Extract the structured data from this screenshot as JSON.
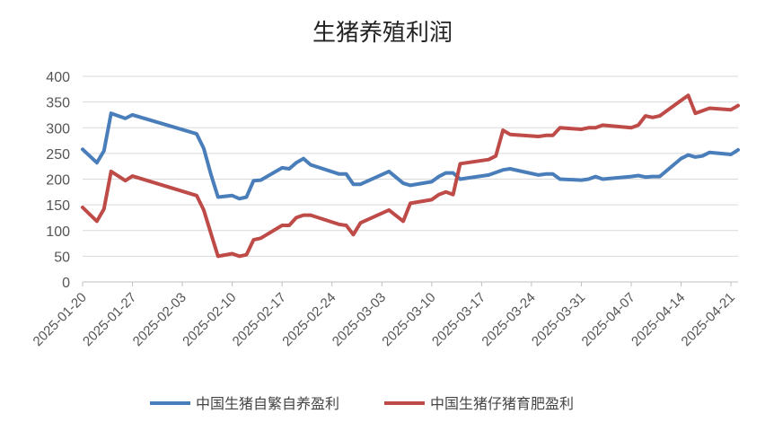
{
  "chart_data": {
    "type": "line",
    "title": "生猪养殖利润",
    "xlabel": "",
    "ylabel": "",
    "ylim": [
      0,
      400
    ],
    "yticks": [
      "0",
      "50",
      "100",
      "150",
      "200",
      "250",
      "300",
      "350",
      "400"
    ],
    "x_tick_labels": [
      "2025-01-20",
      "2025-01-27",
      "2025-02-03",
      "2025-02-10",
      "2025-02-17",
      "2025-02-24",
      "2025-03-03",
      "2025-03-10",
      "2025-03-17",
      "2025-03-24",
      "2025-03-31",
      "2025-04-07",
      "2025-04-14",
      "2025-04-21"
    ],
    "x_range": [
      "2025-01-20",
      "2025-04-22"
    ],
    "grid": "horizontal",
    "legend": "bottom",
    "series": [
      {
        "name": "中国生猪自繁自养盈利",
        "color": "#4a7ebb",
        "x": [
          "2025-01-20",
          "2025-01-22",
          "2025-01-23",
          "2025-01-24",
          "2025-01-26",
          "2025-01-27",
          "2025-02-05",
          "2025-02-06",
          "2025-02-07",
          "2025-02-08",
          "2025-02-10",
          "2025-02-11",
          "2025-02-12",
          "2025-02-13",
          "2025-02-14",
          "2025-02-17",
          "2025-02-18",
          "2025-02-19",
          "2025-02-20",
          "2025-02-21",
          "2025-02-25",
          "2025-02-26",
          "2025-02-27",
          "2025-02-28",
          "2025-03-04",
          "2025-03-06",
          "2025-03-07",
          "2025-03-10",
          "2025-03-11",
          "2025-03-12",
          "2025-03-13",
          "2025-03-14",
          "2025-03-18",
          "2025-03-20",
          "2025-03-21",
          "2025-03-25",
          "2025-03-26",
          "2025-03-27",
          "2025-03-28",
          "2025-03-31",
          "2025-04-01",
          "2025-04-02",
          "2025-04-03",
          "2025-04-07",
          "2025-04-08",
          "2025-04-09",
          "2025-04-10",
          "2025-04-11",
          "2025-04-14",
          "2025-04-15",
          "2025-04-16",
          "2025-04-17",
          "2025-04-18",
          "2025-04-21",
          "2025-04-22"
        ],
        "values": [
          258,
          232,
          255,
          328,
          318,
          325,
          288,
          260,
          210,
          165,
          168,
          162,
          165,
          197,
          198,
          222,
          220,
          232,
          240,
          228,
          210,
          210,
          190,
          190,
          215,
          192,
          188,
          195,
          205,
          212,
          212,
          200,
          208,
          218,
          220,
          208,
          210,
          210,
          200,
          198,
          200,
          205,
          200,
          205,
          207,
          204,
          205,
          205,
          240,
          247,
          243,
          245,
          252,
          248,
          257
        ]
      },
      {
        "name": "中国生猪仔猪育肥盈利",
        "color": "#be4b48",
        "x": [
          "2025-01-20",
          "2025-01-22",
          "2025-01-23",
          "2025-01-24",
          "2025-01-26",
          "2025-01-27",
          "2025-02-05",
          "2025-02-06",
          "2025-02-07",
          "2025-02-08",
          "2025-02-10",
          "2025-02-11",
          "2025-02-12",
          "2025-02-13",
          "2025-02-14",
          "2025-02-17",
          "2025-02-18",
          "2025-02-19",
          "2025-02-20",
          "2025-02-21",
          "2025-02-25",
          "2025-02-26",
          "2025-02-27",
          "2025-02-28",
          "2025-03-04",
          "2025-03-06",
          "2025-03-07",
          "2025-03-10",
          "2025-03-11",
          "2025-03-12",
          "2025-03-13",
          "2025-03-14",
          "2025-03-18",
          "2025-03-19",
          "2025-03-20",
          "2025-03-21",
          "2025-03-25",
          "2025-03-26",
          "2025-03-27",
          "2025-03-28",
          "2025-03-31",
          "2025-04-01",
          "2025-04-02",
          "2025-04-03",
          "2025-04-07",
          "2025-04-08",
          "2025-04-09",
          "2025-04-10",
          "2025-04-11",
          "2025-04-14",
          "2025-04-15",
          "2025-04-16",
          "2025-04-17",
          "2025-04-18",
          "2025-04-21",
          "2025-04-22"
        ],
        "values": [
          145,
          118,
          142,
          215,
          197,
          206,
          168,
          140,
          95,
          50,
          55,
          50,
          53,
          82,
          85,
          110,
          110,
          125,
          130,
          130,
          112,
          110,
          92,
          115,
          140,
          118,
          153,
          160,
          170,
          175,
          170,
          230,
          238,
          245,
          295,
          287,
          283,
          285,
          285,
          300,
          297,
          300,
          300,
          305,
          300,
          305,
          323,
          320,
          323,
          353,
          363,
          328,
          333,
          338,
          335,
          343
        ]
      }
    ]
  }
}
